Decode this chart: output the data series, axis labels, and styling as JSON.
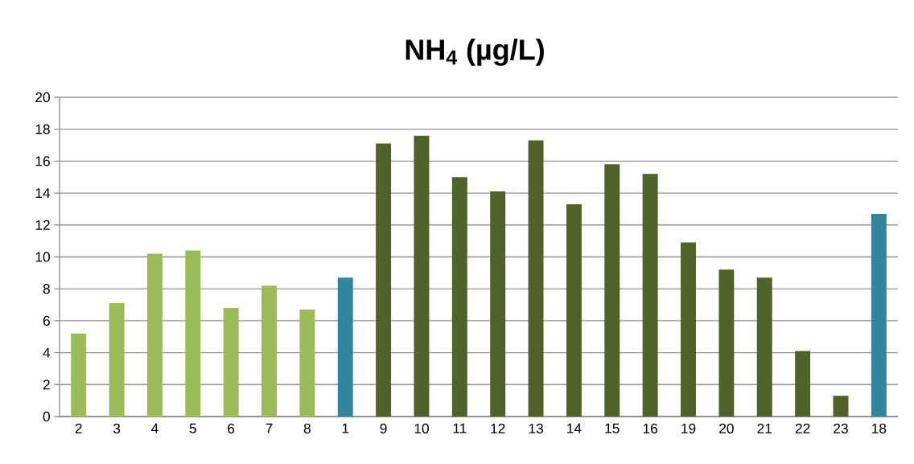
{
  "chart_data": {
    "type": "bar",
    "title": "NH$_{4}$ (µg/L)",
    "categories": [
      "2",
      "3",
      "4",
      "5",
      "6",
      "7",
      "8",
      "1",
      "9",
      "10",
      "11",
      "12",
      "13",
      "14",
      "15",
      "16",
      "19",
      "20",
      "21",
      "22",
      "23",
      "18"
    ],
    "values": [
      5.2,
      7.1,
      10.2,
      10.4,
      6.8,
      8.2,
      6.7,
      8.7,
      17.1,
      17.6,
      15.0,
      14.1,
      17.3,
      13.3,
      15.8,
      15.2,
      10.9,
      9.2,
      8.7,
      4.1,
      1.3,
      12.7
    ],
    "colors": [
      "#9bbb59",
      "#9bbb59",
      "#9bbb59",
      "#9bbb59",
      "#9bbb59",
      "#9bbb59",
      "#9bbb59",
      "#31859c",
      "#4f6228",
      "#4f6228",
      "#4f6228",
      "#4f6228",
      "#4f6228",
      "#4f6228",
      "#4f6228",
      "#4f6228",
      "#4f6228",
      "#4f6228",
      "#4f6228",
      "#4f6228",
      "#4f6228",
      "#31859c"
    ],
    "ylim": [
      0,
      20
    ],
    "yticks": [
      0,
      2,
      4,
      6,
      8,
      10,
      12,
      14,
      16,
      18,
      20
    ],
    "grid": "y"
  }
}
